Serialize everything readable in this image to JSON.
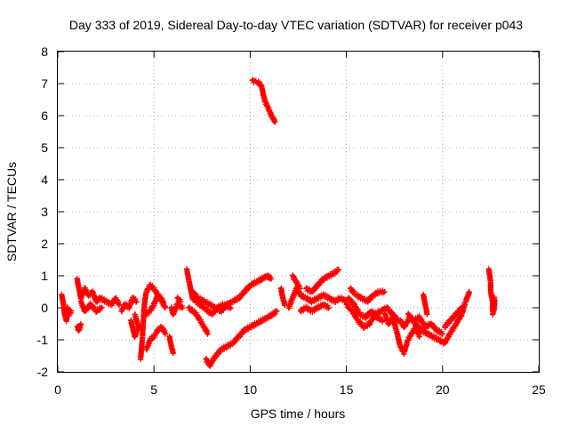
{
  "chart_data": {
    "type": "scatter",
    "title": "Day 333 of 2019, Sidereal Day-to-day VTEC variation (SDTVAR) for receiver p043",
    "xlabel": "GPS time / hours",
    "ylabel": "SDTVAR / TECUs",
    "xlim": [
      0,
      25
    ],
    "ylim": [
      -2,
      8
    ],
    "xticks": [
      "0",
      "5",
      "10",
      "15",
      "20",
      "25"
    ],
    "yticks": [
      "-2",
      "-1",
      "0",
      "1",
      "2",
      "3",
      "4",
      "5",
      "6",
      "7",
      "8"
    ],
    "grid": true,
    "marker": "plus",
    "color": "#ff0000",
    "series": [
      {
        "name": "SDTVAR",
        "tracks": [
          [
            [
              0.2,
              0.4
            ],
            [
              0.3,
              0.1
            ],
            [
              0.35,
              -0.2
            ],
            [
              0.45,
              -0.4
            ],
            [
              0.5,
              0.0
            ],
            [
              0.6,
              -0.2
            ],
            [
              0.7,
              -0.1
            ]
          ],
          [
            [
              1.0,
              0.9
            ],
            [
              1.1,
              0.6
            ],
            [
              1.2,
              0.3
            ],
            [
              1.4,
              0.6
            ],
            [
              1.6,
              0.4
            ],
            [
              1.8,
              0.5
            ],
            [
              2.0,
              0.2
            ],
            [
              2.2,
              0.3
            ],
            [
              2.5,
              0.2
            ],
            [
              2.8,
              0.1
            ],
            [
              3.0,
              0.3
            ],
            [
              3.2,
              0.1
            ]
          ],
          [
            [
              1.0,
              -0.6
            ],
            [
              1.1,
              -0.7
            ],
            [
              1.2,
              -0.5
            ]
          ],
          [
            [
              1.2,
              0.2
            ],
            [
              1.4,
              -0.1
            ],
            [
              1.7,
              0.1
            ],
            [
              2.0,
              -0.1
            ],
            [
              2.3,
              0.0
            ]
          ],
          [
            [
              3.3,
              -0.1
            ],
            [
              3.5,
              0.1
            ],
            [
              3.7,
              0.0
            ],
            [
              3.9,
              0.3
            ],
            [
              4.1,
              0.2
            ]
          ],
          [
            [
              3.8,
              -0.4
            ],
            [
              4.0,
              -0.9
            ],
            [
              4.2,
              -0.6
            ],
            [
              4.0,
              -0.2
            ]
          ],
          [
            [
              4.3,
              -1.6
            ],
            [
              4.35,
              -1.3
            ],
            [
              4.4,
              -0.9
            ],
            [
              4.5,
              0.1
            ],
            [
              4.6,
              0.5
            ],
            [
              4.8,
              0.7
            ],
            [
              5.0,
              0.6
            ],
            [
              5.3,
              0.3
            ],
            [
              5.6,
              0.0
            ]
          ],
          [
            [
              4.6,
              -0.2
            ],
            [
              4.8,
              -0.1
            ],
            [
              5.0,
              0.1
            ],
            [
              5.2,
              0.4
            ],
            [
              5.5,
              0.2
            ]
          ],
          [
            [
              4.6,
              -1.3
            ],
            [
              4.8,
              -1.0
            ],
            [
              5.0,
              -0.9
            ],
            [
              5.2,
              -0.7
            ],
            [
              5.4,
              -0.6
            ],
            [
              5.6,
              -0.8
            ]
          ],
          [
            [
              5.8,
              -0.9
            ],
            [
              5.9,
              -1.2
            ],
            [
              6.0,
              -1.4
            ]
          ],
          [
            [
              5.9,
              0.0
            ],
            [
              6.0,
              -0.2
            ],
            [
              6.2,
              0.1
            ],
            [
              6.5,
              0.0
            ]
          ],
          [
            [
              6.2,
              0.3
            ],
            [
              6.4,
              0.2
            ]
          ],
          [
            [
              6.7,
              1.2
            ],
            [
              6.8,
              0.9
            ],
            [
              6.9,
              0.6
            ],
            [
              7.0,
              0.3
            ],
            [
              7.2,
              0.2
            ],
            [
              7.4,
              0.1
            ],
            [
              7.6,
              0.0
            ],
            [
              7.8,
              -0.1
            ],
            [
              8.0,
              -0.2
            ],
            [
              8.3,
              0.0
            ],
            [
              8.6,
              0.1
            ],
            [
              9.0,
              0.0
            ]
          ],
          [
            [
              6.8,
              0.0
            ],
            [
              7.0,
              -0.1
            ],
            [
              7.2,
              -0.2
            ],
            [
              7.4,
              -0.4
            ],
            [
              7.6,
              -0.6
            ],
            [
              7.8,
              -0.8
            ]
          ],
          [
            [
              7.0,
              0.5
            ],
            [
              7.3,
              0.3
            ],
            [
              7.6,
              0.2
            ],
            [
              7.9,
              0.1
            ],
            [
              8.2,
              0.0
            ],
            [
              8.5,
              -0.1
            ],
            [
              8.8,
              0.1
            ],
            [
              9.1,
              0.2
            ],
            [
              9.4,
              0.3
            ],
            [
              9.7,
              0.5
            ],
            [
              10.0,
              0.7
            ],
            [
              10.3,
              0.8
            ],
            [
              10.6,
              0.9
            ],
            [
              10.9,
              1.0
            ],
            [
              11.1,
              0.9
            ]
          ],
          [
            [
              7.7,
              -1.6
            ],
            [
              7.8,
              -1.7
            ],
            [
              7.9,
              -1.8
            ],
            [
              8.0,
              -1.7
            ],
            [
              8.2,
              -1.5
            ],
            [
              8.5,
              -1.3
            ],
            [
              8.8,
              -1.2
            ],
            [
              9.1,
              -1.1
            ],
            [
              9.4,
              -0.9
            ],
            [
              9.7,
              -0.7
            ],
            [
              10.0,
              -0.6
            ],
            [
              10.3,
              -0.5
            ],
            [
              10.6,
              -0.4
            ],
            [
              10.9,
              -0.3
            ],
            [
              11.2,
              -0.2
            ],
            [
              11.4,
              -0.1
            ]
          ],
          [
            [
              10.1,
              7.1
            ],
            [
              10.3,
              7.05
            ],
            [
              10.5,
              7.0
            ],
            [
              10.6,
              6.9
            ],
            [
              10.7,
              6.6
            ],
            [
              10.8,
              6.4
            ],
            [
              10.9,
              6.3
            ],
            [
              11.0,
              6.15
            ],
            [
              11.1,
              6.0
            ],
            [
              11.2,
              5.9
            ],
            [
              11.3,
              5.8
            ]
          ],
          [
            [
              11.6,
              0.6
            ],
            [
              11.7,
              0.3
            ],
            [
              11.8,
              0.1
            ]
          ],
          [
            [
              12.0,
              0.0
            ],
            [
              12.2,
              0.3
            ],
            [
              12.4,
              0.6
            ],
            [
              12.6,
              0.4
            ],
            [
              12.9,
              0.3
            ],
            [
              13.2,
              0.2
            ],
            [
              13.5,
              0.3
            ],
            [
              13.8,
              0.4
            ],
            [
              14.1,
              0.3
            ],
            [
              14.4,
              0.2
            ],
            [
              14.7,
              0.3
            ],
            [
              15.0,
              0.2
            ]
          ],
          [
            [
              12.2,
              1.0
            ],
            [
              12.4,
              0.8
            ],
            [
              12.6,
              0.6
            ]
          ],
          [
            [
              12.9,
              0.6
            ],
            [
              13.2,
              0.5
            ],
            [
              13.5,
              0.7
            ],
            [
              13.8,
              0.9
            ],
            [
              14.1,
              1.0
            ],
            [
              14.4,
              1.1
            ],
            [
              14.6,
              1.2
            ]
          ],
          [
            [
              12.6,
              -0.1
            ],
            [
              12.9,
              0.0
            ],
            [
              13.2,
              -0.1
            ],
            [
              13.5,
              0.0
            ],
            [
              13.8,
              0.1
            ],
            [
              14.1,
              0.0
            ]
          ],
          [
            [
              15.0,
              0.1
            ],
            [
              15.3,
              -0.1
            ],
            [
              15.6,
              -0.4
            ],
            [
              15.9,
              -0.6
            ],
            [
              16.2,
              -0.5
            ],
            [
              16.5,
              -0.2
            ],
            [
              16.8,
              -0.1
            ],
            [
              17.1,
              0.0
            ],
            [
              17.4,
              -0.2
            ],
            [
              17.7,
              -0.4
            ]
          ],
          [
            [
              15.2,
              0.6
            ],
            [
              15.5,
              0.4
            ],
            [
              15.8,
              0.3
            ],
            [
              16.1,
              0.2
            ],
            [
              16.4,
              0.4
            ],
            [
              16.7,
              0.5
            ],
            [
              17.0,
              0.5
            ]
          ],
          [
            [
              15.1,
              0.3
            ],
            [
              15.4,
              0.1
            ],
            [
              15.7,
              -0.2
            ],
            [
              16.0,
              -0.3
            ],
            [
              16.3,
              -0.1
            ],
            [
              16.6,
              -0.3
            ],
            [
              16.9,
              -0.4
            ]
          ],
          [
            [
              17.0,
              -0.2
            ],
            [
              17.2,
              -0.5
            ],
            [
              17.4,
              -0.3
            ],
            [
              17.6,
              -0.7
            ],
            [
              17.8,
              -1.2
            ],
            [
              18.0,
              -1.4
            ],
            [
              18.2,
              -1.0
            ],
            [
              18.4,
              -0.8
            ],
            [
              18.6,
              -0.6
            ],
            [
              18.8,
              -0.9
            ]
          ],
          [
            [
              17.8,
              -0.4
            ],
            [
              18.0,
              -0.6
            ],
            [
              18.3,
              -0.3
            ],
            [
              18.6,
              -0.5
            ],
            [
              18.9,
              -0.7
            ],
            [
              19.2,
              -0.8
            ],
            [
              19.5,
              -0.9
            ],
            [
              19.8,
              -1.0
            ],
            [
              20.1,
              -1.1
            ],
            [
              20.4,
              -0.8
            ],
            [
              20.7,
              -0.5
            ],
            [
              21.0,
              -0.2
            ],
            [
              21.2,
              0.2
            ],
            [
              21.4,
              0.5
            ]
          ],
          [
            [
              18.2,
              -0.2
            ],
            [
              18.5,
              -0.4
            ],
            [
              18.8,
              -0.3
            ],
            [
              19.1,
              -0.6
            ],
            [
              19.4,
              -0.5
            ],
            [
              19.7,
              -0.7
            ],
            [
              20.0,
              -0.8
            ]
          ],
          [
            [
              19.0,
              0.4
            ],
            [
              19.1,
              0.1
            ],
            [
              19.2,
              -0.2
            ]
          ],
          [
            [
              20.1,
              -0.6
            ],
            [
              20.4,
              -0.4
            ],
            [
              20.7,
              -0.2
            ],
            [
              21.0,
              0.0
            ]
          ],
          [
            [
              22.4,
              1.2
            ],
            [
              22.5,
              0.8
            ],
            [
              22.5,
              0.5
            ],
            [
              22.6,
              0.2
            ],
            [
              22.6,
              -0.1
            ],
            [
              22.7,
              0.3
            ],
            [
              22.7,
              0.0
            ],
            [
              22.6,
              -0.2
            ]
          ]
        ]
      }
    ]
  }
}
